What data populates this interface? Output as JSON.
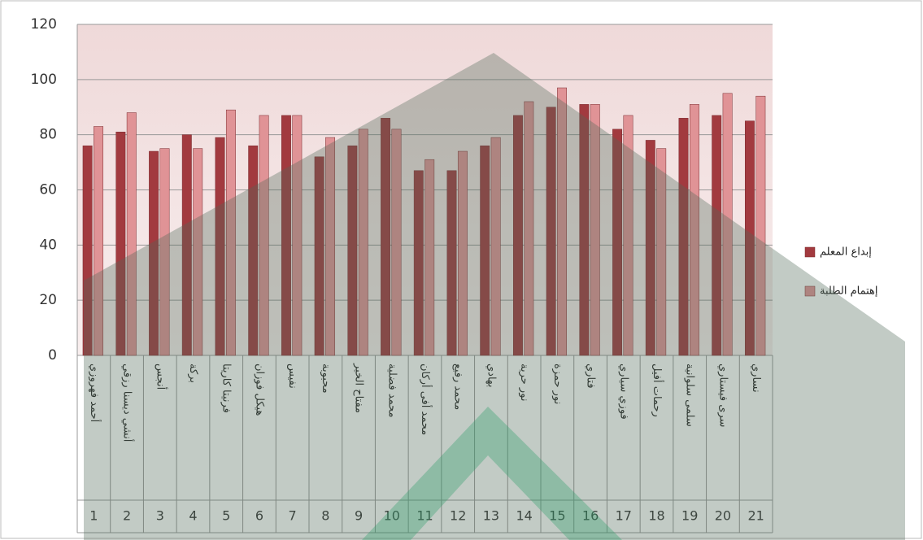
{
  "chart_data": {
    "type": "bar",
    "categories": [
      "أحمد فهروزي",
      "أنشي ديسنا رزقي",
      "أنجس",
      "بركة",
      "فرنيتا كاريتا",
      "هيكل فوزان",
      "نفيس",
      "محبوبة",
      "مفتاح الخير",
      "محمد فضلية",
      "محمد أفى أركان",
      "محمد رفيع",
      "بهادي",
      "نور حرية",
      "نور حمزة",
      "فتاري",
      "فوزي سياري",
      "رحمات أفيل",
      "سلمى سلوانية",
      "سرى فيستاري",
      "نساري"
    ],
    "category_numbers": [
      "1",
      "2",
      "3",
      "4",
      "5",
      "6",
      "7",
      "8",
      "9",
      "10",
      "11",
      "12",
      "13",
      "14",
      "15",
      "16",
      "17",
      "18",
      "19",
      "20",
      "21"
    ],
    "series": [
      {
        "name": "إبداع المعلم",
        "color": "#a23a3f",
        "values": [
          76,
          81,
          74,
          80,
          79,
          76,
          87,
          72,
          76,
          86,
          67,
          67,
          76,
          87,
          90,
          91,
          82,
          78,
          86,
          87,
          85
        ]
      },
      {
        "name": "إهتمام الطلبة",
        "color": "#e09396",
        "values": [
          83,
          88,
          75,
          75,
          89,
          87,
          87,
          79,
          82,
          82,
          71,
          74,
          79,
          92,
          97,
          91,
          87,
          75,
          91,
          95,
          94
        ]
      }
    ],
    "ylim": [
      0,
      120
    ],
    "yticks": [
      0,
      20,
      40,
      60,
      80,
      100,
      120
    ],
    "grid": true,
    "legend": "right"
  }
}
